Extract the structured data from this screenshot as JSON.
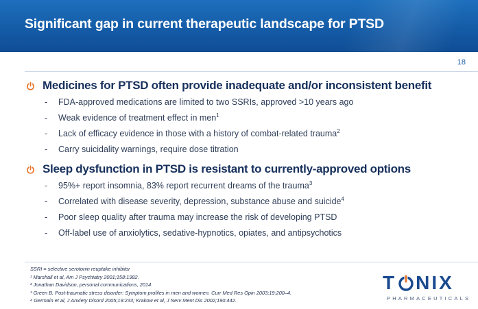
{
  "header": {
    "title": "Significant gap in current therapeutic landscape for PTSD",
    "page_number": "18"
  },
  "main": {
    "groups": [
      {
        "heading": "Medicines for PTSD often provide inadequate and/or inconsistent benefit",
        "items": [
          {
            "text": "FDA-approved medications are limited to two SSRIs, approved >10 years ago",
            "sup": ""
          },
          {
            "text": "Weak evidence of treatment effect in men",
            "sup": "1"
          },
          {
            "text": "Lack of efficacy evidence in those with a history of combat-related trauma",
            "sup": "2"
          },
          {
            "text": "Carry suicidality warnings, require dose titration",
            "sup": ""
          }
        ]
      },
      {
        "heading": "Sleep dysfunction in PTSD is resistant to currently-approved options",
        "items": [
          {
            "text": "95%+ report insomnia, 83% report recurrent dreams of the trauma",
            "sup": "3"
          },
          {
            "text": "Correlated with disease severity, depression, substance abuse and suicide",
            "sup": "4"
          },
          {
            "text": "Poor sleep quality after trauma may increase the risk of developing PTSD",
            "sup": ""
          },
          {
            "text": "Off-label use of anxiolytics, sedative-hypnotics, opiates, and antipsychotics",
            "sup": ""
          }
        ]
      }
    ],
    "dash": "-"
  },
  "footer": {
    "footnotes": [
      "SSRI = selective serotonin reuptake inhibitor",
      "¹ Marshall et al, Am J Psychiatry 2001;158:1982.",
      "² Jonathan Davidson, personal communications, 2014.",
      "³ Green B. Post-traumatic stress disorder: Symptom profiles in men and women. Curr Med Res Opin 2003;19:200–4.",
      "⁴ Germain et al, J Anxiety Disord 2005;19:233; Krakow et al, J Nerv Ment Dis 2002;190:442."
    ],
    "logo": {
      "word_left": "T",
      "word_right": "NIX",
      "subtitle": "PHARMACEUTICALS"
    }
  },
  "colors": {
    "header_blue": "#145aa5",
    "heading_navy": "#17305c",
    "bullet_icon_orange": "#e8742a",
    "logo_blue": "#1a4a8f"
  },
  "icons": {
    "bullet": "power-icon",
    "logo_o": "power-ring-icon"
  }
}
